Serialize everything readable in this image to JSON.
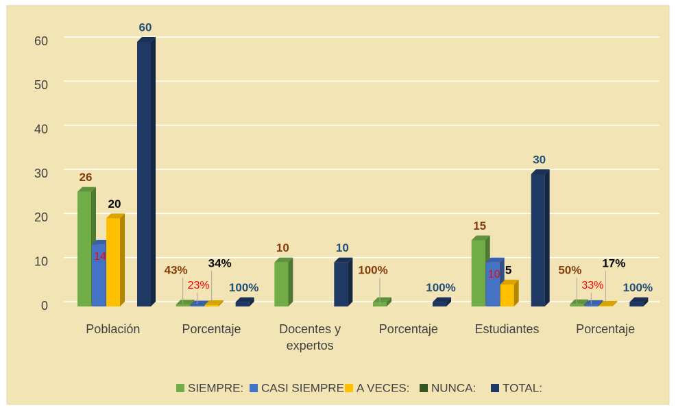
{
  "chart_data": {
    "type": "bar3d",
    "categories": [
      "Población",
      "Porcentaje",
      "Docentes  y expertos",
      "Porcentaje",
      "Estudiantes",
      "Porcentaje"
    ],
    "series": [
      {
        "name": "SIEMPRE:",
        "color": "#70ad47",
        "label_color": "#843c0c",
        "values": [
          26,
          0.43,
          10,
          1,
          15,
          0.5
        ],
        "value_labels": [
          "26",
          "43%",
          "10",
          "100%",
          "15",
          "50%"
        ]
      },
      {
        "name": "CASI SIEMPRE:",
        "color": "#4472c4",
        "label_color": "#ff0000",
        "values": [
          14,
          0.23,
          null,
          null,
          10,
          0.33
        ],
        "value_labels": [
          "14",
          "23%",
          null,
          null,
          "10",
          "33%"
        ]
      },
      {
        "name": "A VECES:",
        "color": "#ffc000",
        "label_color": "#000000",
        "values": [
          20,
          0.34,
          null,
          null,
          5,
          0.17
        ],
        "value_labels": [
          "20",
          "34%",
          null,
          null,
          "5",
          "17%"
        ]
      },
      {
        "name": "NUNCA:",
        "color": "#375623",
        "label_color": "#000000",
        "values": [
          null,
          null,
          null,
          null,
          null,
          null
        ]
      },
      {
        "name": "TOTAL:",
        "color": "#203864",
        "label_color": "#1f4e79",
        "values": [
          60,
          1,
          10,
          1,
          30,
          1
        ],
        "value_labels": [
          "60",
          "100%",
          "10",
          "100%",
          "30",
          "100%"
        ]
      }
    ],
    "ylim": [
      0,
      60
    ],
    "yticks": [
      0,
      10,
      20,
      30,
      40,
      50,
      60
    ],
    "grid": true,
    "legend": "bottom"
  }
}
